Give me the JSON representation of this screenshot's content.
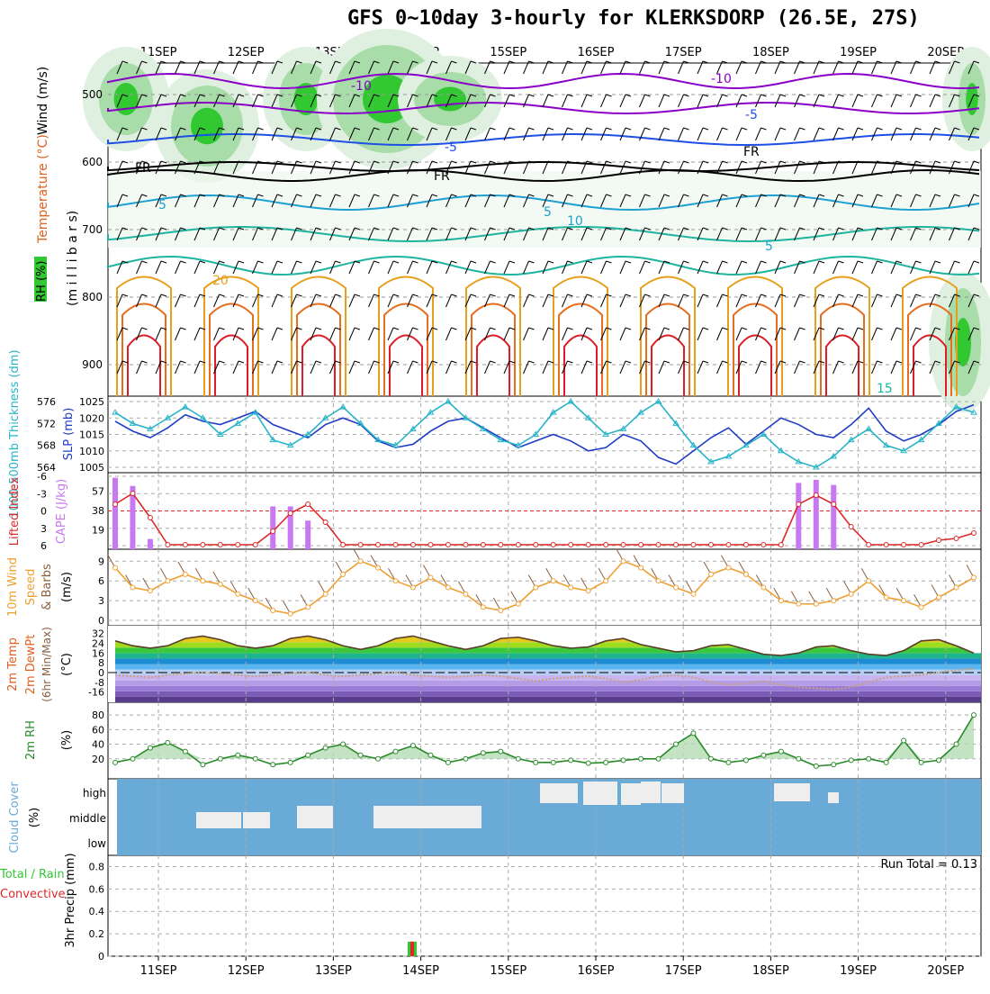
{
  "title": "GFS 0~10day 3-hourly for KLERKSDORP (26.5E, 27S)",
  "dates": [
    "11SEP",
    "12SEP",
    "13SEP",
    "14SEP",
    "15SEP",
    "16SEP",
    "17SEP",
    "18SEP",
    "19SEP",
    "20SEP"
  ],
  "colors": {
    "temp_cold": "#8a00c8",
    "temp_cool": "#1e50e6",
    "temp_mid": "#1ea0d2",
    "temp_warm": "#1eb4a0",
    "temp_hot": "#e6a01e",
    "temp_hotter": "#e66e1e",
    "temp_max": "#dc1e28",
    "rh_fill": "#32c832",
    "slp": "#1e3cc8",
    "thick": "#28b4c8",
    "lifted": "#dc2828",
    "cape": "#c878f0",
    "wind": "#f0a032",
    "cloud": "#6aaad6",
    "precip": "#32c832"
  },
  "panels": {
    "upper": {
      "ylabel1": "Wind (m/s)",
      "ylabel2": "Temperature (°C)",
      "ylabel3": "RH (%)",
      "ylabel4": "(m i l l i b a r s)",
      "yticks": [
        "500",
        "600",
        "700",
        "800",
        "900"
      ],
      "contour_labels": [
        "-10",
        "-10",
        "-5",
        "-5",
        "FR",
        "FR",
        "FR",
        "5",
        "5",
        "10",
        "5",
        "20",
        "15"
      ]
    },
    "slp": {
      "ylabel_left": "1000-500mb Thickness (dm)",
      "ylabel_right": "SLP (mb)",
      "left_ticks": [
        "576",
        "572",
        "568",
        "564"
      ],
      "right_ticks": [
        "1025",
        "1020",
        "1015",
        "1010",
        "1005"
      ]
    },
    "cape": {
      "ylabel_left": "Lifted Index",
      "ylabel_right": "CAPE (J/kg)",
      "left_ticks": [
        "-6",
        "-3",
        "0",
        "3",
        "6"
      ],
      "right_ticks": [
        "57",
        "38",
        "19"
      ]
    },
    "wind10": {
      "ylabel1": "10m Wind",
      "ylabel2": "Speed",
      "ylabel3": "& Barbs",
      "unit": "(m/s)",
      "yticks": [
        "9",
        "6",
        "3",
        "0"
      ]
    },
    "temp2m": {
      "ylabel1": "2m Temp",
      "ylabel2": "2m DewPt",
      "ylabel3": "(6hr Min/Max)",
      "unit": "(°C)",
      "yticks": [
        "32",
        "24",
        "16",
        "8",
        "0",
        "-8",
        "-16"
      ]
    },
    "rh2m": {
      "ylabel": "2m RH",
      "unit": "(%)",
      "yticks": [
        "80",
        "60",
        "40",
        "20"
      ]
    },
    "cloud": {
      "ylabel": "Cloud Cover",
      "unit": "(%)",
      "levels": [
        "high",
        "middle",
        "low"
      ]
    },
    "precip": {
      "ylabel1": "Total / Rain",
      "ylabel2": "Convective",
      "ylabel3": "3hr Precip (mm)",
      "yticks": [
        "0.8",
        "0.6",
        "0.4",
        "0.2",
        "0"
      ],
      "run_total": "Run Total = 0.13"
    }
  },
  "chart_data": [
    {
      "type": "line",
      "title": "SLP (mb)",
      "x_start": "10SEP 12Z",
      "x_step_hours": 6,
      "ylim": [
        1005,
        1025
      ],
      "values": [
        1019,
        1016,
        1014,
        1017,
        1021,
        1019,
        1018,
        1020,
        1022,
        1018,
        1016,
        1014,
        1018,
        1020,
        1018,
        1013,
        1011,
        1012,
        1016,
        1019,
        1020,
        1017,
        1014,
        1011,
        1013,
        1015,
        1013,
        1010,
        1011,
        1015,
        1013,
        1008,
        1006,
        1010,
        1014,
        1017,
        1012,
        1016,
        1020,
        1018,
        1015,
        1014,
        1018,
        1023,
        1016,
        1013,
        1015,
        1018,
        1022,
        1024
      ]
    },
    {
      "type": "line",
      "title": "1000-500mb Thickness (dm)",
      "ylim": [
        564,
        576
      ],
      "values": [
        574,
        572,
        571,
        573,
        575,
        573,
        570,
        572,
        574,
        569,
        568,
        570,
        573,
        575,
        572,
        569,
        568,
        571,
        574,
        576,
        573,
        571,
        569,
        568,
        570,
        574,
        576,
        573,
        570,
        571,
        574,
        576,
        572,
        568,
        565,
        566,
        568,
        570,
        567,
        565,
        564,
        566,
        569,
        571,
        568,
        567,
        569,
        572,
        575,
        574
      ]
    },
    {
      "type": "bar",
      "title": "CAPE (J/kg)",
      "ylim": [
        0,
        75
      ],
      "values": [
        70,
        62,
        10,
        0,
        0,
        0,
        0,
        0,
        0,
        42,
        42,
        28,
        0,
        0,
        0,
        0,
        0,
        0,
        0,
        0,
        0,
        0,
        0,
        0,
        0,
        0,
        0,
        0,
        0,
        0,
        0,
        0,
        0,
        0,
        0,
        0,
        0,
        0,
        0,
        65,
        68,
        63,
        0,
        0,
        0,
        0,
        0,
        0,
        0,
        0
      ]
    },
    {
      "type": "line",
      "title": "10m Wind Speed (m/s)",
      "ylim": [
        0,
        10
      ],
      "values": [
        8,
        5,
        4.5,
        6,
        7,
        6,
        5.5,
        4,
        3,
        1.5,
        1,
        2,
        4,
        7,
        9,
        8,
        6,
        5,
        6.5,
        5,
        4,
        2,
        1.5,
        2.5,
        5,
        6,
        5,
        4.5,
        6,
        9,
        8,
        6,
        5,
        4,
        7,
        8,
        7,
        5,
        3,
        2.5,
        2.5,
        3,
        4,
        6,
        3.5,
        3,
        2,
        3.5,
        5,
        6.5
      ]
    },
    {
      "type": "area",
      "title": "2m Temp (°C)",
      "ylim": [
        -20,
        34
      ],
      "values": [
        26,
        22,
        20,
        22,
        28,
        30,
        27,
        22,
        20,
        22,
        28,
        30,
        27,
        22,
        19,
        22,
        28,
        30,
        26,
        22,
        19,
        22,
        28,
        29,
        26,
        22,
        20,
        21,
        26,
        28,
        23,
        20,
        17,
        18,
        22,
        23,
        19,
        15,
        14,
        16,
        21,
        22,
        18,
        15,
        14,
        18,
        26,
        27,
        22,
        16
      ]
    },
    {
      "type": "line",
      "title": "2m DewPt (°C)",
      "ylim": [
        -20,
        34
      ],
      "values": [
        -2,
        -3,
        -4,
        -2,
        -1,
        0,
        -1,
        -2,
        -3,
        -2,
        -1,
        0,
        -2,
        -3,
        -2,
        -1,
        0,
        -2,
        -3,
        -4,
        -3,
        -2,
        -3,
        -5,
        -7,
        -5,
        -4,
        -3,
        -5,
        -8,
        -6,
        -3,
        -2,
        -4,
        -8,
        -10,
        -9,
        -7,
        -10,
        -12,
        -13,
        -14,
        -12,
        -8,
        -4,
        -3,
        -2,
        0,
        2,
        3
      ]
    },
    {
      "type": "area",
      "title": "2m RH (%)",
      "ylim": [
        0,
        90
      ],
      "values": [
        15,
        20,
        35,
        42,
        30,
        12,
        20,
        25,
        20,
        12,
        15,
        25,
        35,
        40,
        25,
        20,
        30,
        38,
        25,
        15,
        20,
        28,
        30,
        20,
        15,
        15,
        18,
        14,
        15,
        18,
        20,
        20,
        40,
        55,
        20,
        15,
        18,
        25,
        30,
        20,
        10,
        12,
        18,
        20,
        15,
        45,
        15,
        18,
        40,
        80
      ]
    },
    {
      "type": "bar",
      "title": "3hr Precip (mm)",
      "ylim": [
        0,
        0.9
      ],
      "bars": [
        {
          "x": "13SEP 21Z",
          "value": 0.13
        }
      ]
    }
  ]
}
